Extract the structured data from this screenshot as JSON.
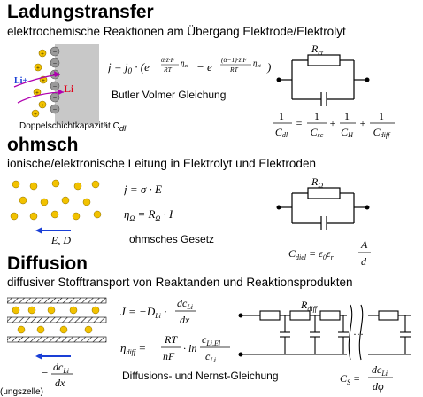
{
  "sections": {
    "ladung": {
      "title": "Ladungstransfer",
      "subtitle": "elektrochemische Reaktionen am Übergang Elektrode/Elektrolyt",
      "li_ion": "Li+",
      "li_metal": "Li",
      "cap_note": "Doppelschichtkapazität C",
      "cap_note_sub": "dl",
      "equation_name": "Butler Volmer Gleichung",
      "resistor_label": "R",
      "resistor_sub": "ct"
    },
    "ohmsch": {
      "title": "ohmsch",
      "subtitle": "ionische/elektronische Leitung in Elektrolyt und Elektroden",
      "ion": "Li+",
      "field_label": "E, D",
      "law_name": "ohmsches Gesetz",
      "resistor_label": "R",
      "resistor_sub": "Ω"
    },
    "diffusion": {
      "title": "Diffusion",
      "subtitle": "diffusiver Stofftransport von Reaktanden und Reaktionsprodukten",
      "ion": "Li",
      "law_name": "Diffusions- und Nernst-Gleichung",
      "resistor_label": "R",
      "resistor_sub": "diff",
      "cutoff_text": "(ungszelle)"
    }
  }
}
